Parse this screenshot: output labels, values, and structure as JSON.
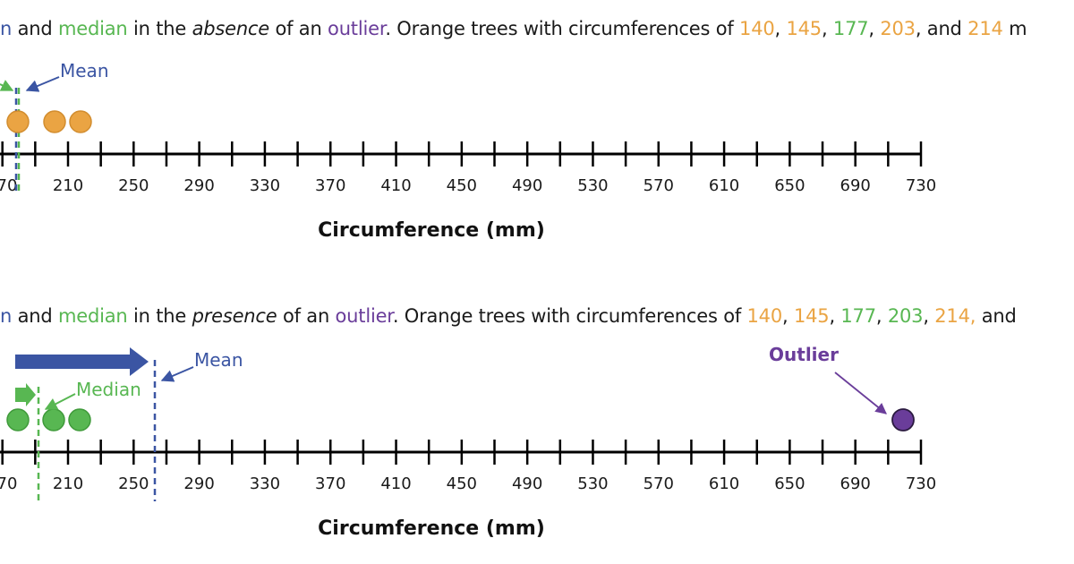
{
  "colors": {
    "mean": "#3b55a3",
    "median": "#58b752",
    "outlier": "#6a3d9a",
    "orange": "#eaa443",
    "green": "#58b752",
    "axis": "#000000"
  },
  "panel1": {
    "caption": {
      "mean_word": "n",
      "and1": " and ",
      "median_word": "median",
      "in_the": " in the ",
      "condition": "absence",
      "of_an": " of an ",
      "outlier_word": "outlier",
      "orange_text": ". Orange trees with circumferences of ",
      "v1": "140",
      "sep1": ", ",
      "v2": "145",
      "sep2": ", ",
      "v3": "177",
      "sep3": ", ",
      "v4": "203",
      "sep4": ", and ",
      "v5": "214",
      "tail": " m"
    },
    "mean_label": "Mean",
    "axis_title": "Circumference (mm)",
    "ticks": [
      "70",
      "210",
      "250",
      "290",
      "330",
      "370",
      "410",
      "450",
      "490",
      "530",
      "570",
      "610",
      "650",
      "690",
      "730"
    ],
    "points": [
      177,
      203,
      214
    ],
    "point_color": "orange",
    "mean_value": 175.8,
    "median_value": 177
  },
  "panel2": {
    "caption": {
      "mean_word": "n",
      "and1": " and ",
      "median_word": "median",
      "in_the": " in the ",
      "condition": "presence",
      "of_an": " of an ",
      "outlier_word": "outlier",
      "orange_text": ". Orange trees with circumferences of ",
      "v1": "140",
      "sep1": ", ",
      "v2": "145",
      "sep2": ", ",
      "v3": "177",
      "sep3": ", ",
      "v4": "203",
      "sep4": ", ",
      "v5": "214,",
      "tail": " and"
    },
    "mean_label": "Mean",
    "median_label": "Median",
    "outlier_label": "Outlier",
    "axis_title": "Circumference (mm)",
    "ticks": [
      "70",
      "210",
      "250",
      "290",
      "330",
      "370",
      "410",
      "450",
      "490",
      "530",
      "570",
      "610",
      "650",
      "690",
      "730"
    ],
    "points": [
      177,
      203,
      214
    ],
    "point_color": "green",
    "outlier_value": 723,
    "mean_value": 267,
    "median_value": 190
  }
}
